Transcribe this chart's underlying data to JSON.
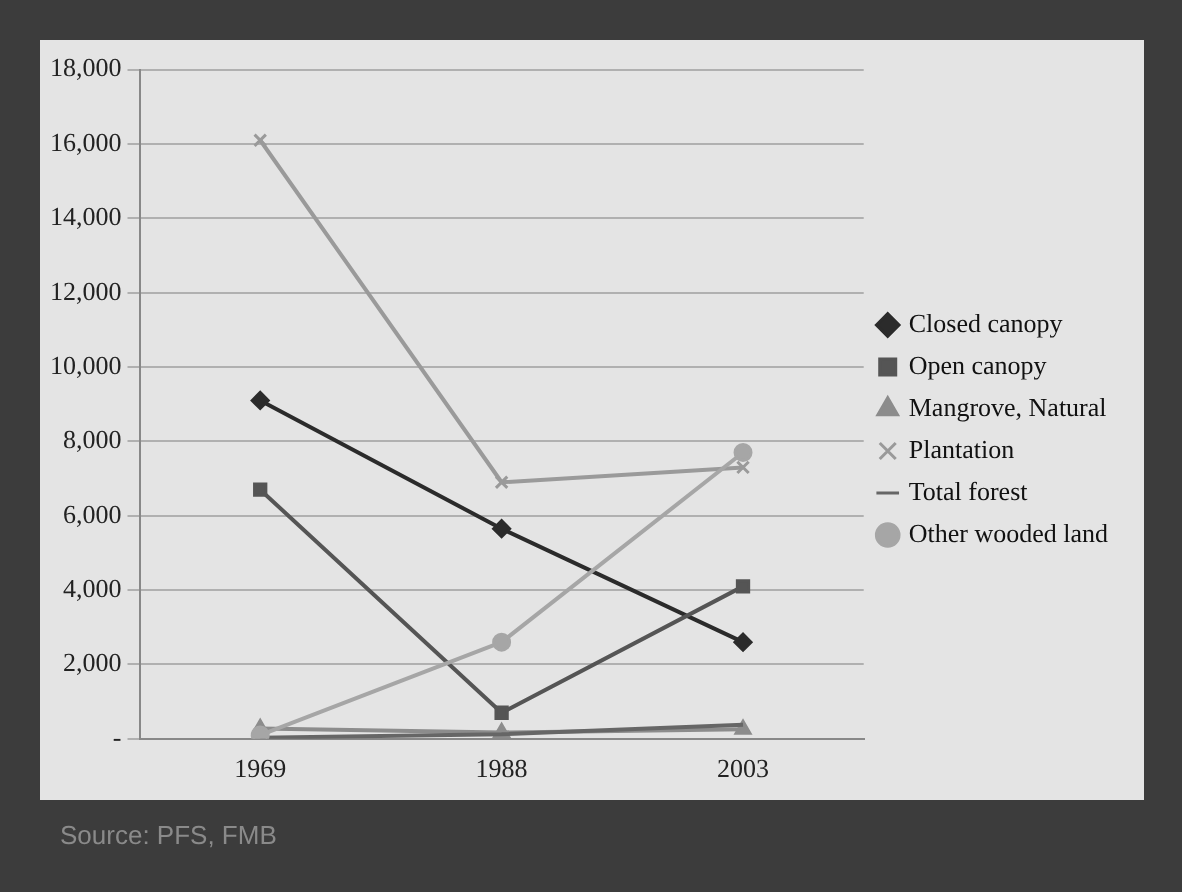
{
  "chart_data": {
    "type": "line",
    "categories": [
      "1969",
      "1988",
      "2003"
    ],
    "series": [
      {
        "name": "Closed canopy",
        "color": "#2b2b2b",
        "marker": "diamond",
        "values": [
          9100,
          5650,
          2600
        ]
      },
      {
        "name": "Open canopy",
        "color": "#555555",
        "marker": "square",
        "values": [
          6700,
          700,
          4100
        ]
      },
      {
        "name": "Mangrove, Natural",
        "color": "#8c8c8c",
        "marker": "triangle",
        "values": [
          280,
          170,
          260
        ]
      },
      {
        "name": "Plantation",
        "color": "#9a9a9a",
        "marker": "cross",
        "values": [
          16100,
          6900,
          7300
        ]
      },
      {
        "name": "Total forest",
        "color": "#666666",
        "marker": "none",
        "values": [
          30,
          120,
          380
        ]
      },
      {
        "name": "Other wooded land",
        "color": "#a6a6a6",
        "marker": "circle",
        "values": [
          100,
          2600,
          7700
        ]
      }
    ],
    "ylim": [
      0,
      18000
    ],
    "yticks": [
      {
        "value": 0,
        "label": "-"
      },
      {
        "value": 2000,
        "label": "2,000"
      },
      {
        "value": 4000,
        "label": "4,000"
      },
      {
        "value": 6000,
        "label": "6,000"
      },
      {
        "value": 8000,
        "label": "8,000"
      },
      {
        "value": 10000,
        "label": "10,000"
      },
      {
        "value": 12000,
        "label": "12,000"
      },
      {
        "value": 14000,
        "label": "14,000"
      },
      {
        "value": 16000,
        "label": "16,000"
      },
      {
        "value": 18000,
        "label": "18,000"
      }
    ],
    "grid": "y",
    "legend": "right",
    "line_style": "solid",
    "annotations": [
      "Source: PFS, FMB"
    ]
  }
}
